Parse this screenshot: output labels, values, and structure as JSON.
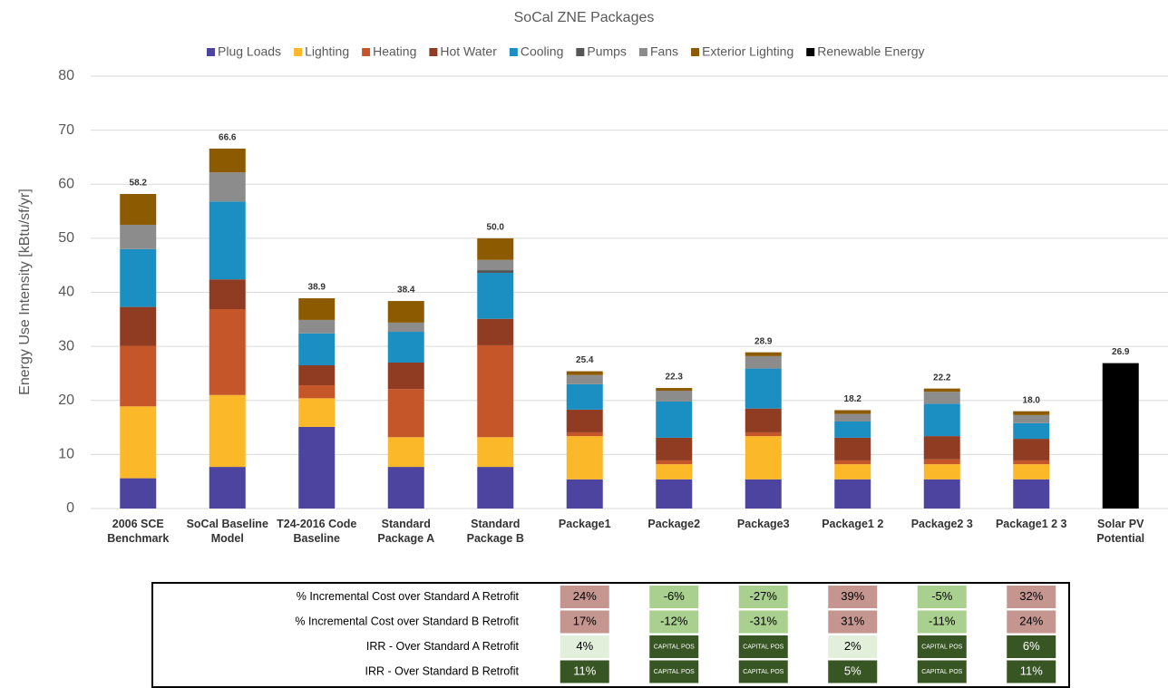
{
  "chart_data": {
    "type": "stacked_bar",
    "title": "SoCal ZNE Packages",
    "y_label": "Energy Use Intensity [kBtu/sf/yr]",
    "categories": [
      "2006 SCE\nBenchmark",
      "SoCal Baseline\nModel",
      "T24-2016 Code\nBaseline",
      "Standard\nPackage A",
      "Standard\nPackage B",
      "Package1",
      "Package2",
      "Package3",
      "Package1 2",
      "Package2 3",
      "Package1 2 3",
      "Solar PV\nPotential"
    ],
    "series": [
      {
        "name": "Plug Loads",
        "color": "#4d44a0",
        "values": [
          5.6,
          7.7,
          15.1,
          7.7,
          7.7,
          5.4,
          5.4,
          5.4,
          5.4,
          5.4,
          5.4,
          null
        ]
      },
      {
        "name": "Lighting",
        "color": "#fbb829",
        "values": [
          13.3,
          13.3,
          5.3,
          5.5,
          5.5,
          8.0,
          2.8,
          8.0,
          2.8,
          2.8,
          2.8,
          null
        ]
      },
      {
        "name": "Heating",
        "color": "#c5562a",
        "values": [
          11.2,
          15.9,
          2.4,
          8.9,
          17.0,
          0.7,
          0.7,
          0.7,
          0.7,
          0.9,
          0.7,
          null
        ]
      },
      {
        "name": "Hot Water",
        "color": "#8f3c22",
        "values": [
          7.2,
          5.5,
          3.7,
          4.9,
          4.9,
          4.2,
          4.2,
          4.4,
          4.2,
          4.3,
          4.0,
          null
        ]
      },
      {
        "name": "Cooling",
        "color": "#1b8fc2",
        "values": [
          10.7,
          14.4,
          5.9,
          5.7,
          8.5,
          4.7,
          6.7,
          7.4,
          3.0,
          6.0,
          2.9,
          null
        ]
      },
      {
        "name": "Pumps",
        "color": "#555555",
        "values": [
          null,
          null,
          null,
          null,
          0.5,
          null,
          null,
          null,
          null,
          null,
          null,
          null
        ]
      },
      {
        "name": "Fans",
        "color": "#8c8c8c",
        "values": [
          4.5,
          5.4,
          2.5,
          1.7,
          1.9,
          1.7,
          2.0,
          2.3,
          1.4,
          2.2,
          1.5,
          null
        ]
      },
      {
        "name": "Exterior Lighting",
        "color": "#8c5a00",
        "values": [
          5.7,
          4.4,
          4.0,
          4.0,
          4.0,
          0.7,
          0.5,
          0.7,
          0.7,
          0.6,
          0.7,
          null
        ]
      },
      {
        "name": "Renewable Energy",
        "color": "#000000",
        "values": [
          null,
          null,
          null,
          null,
          null,
          null,
          null,
          null,
          null,
          null,
          null,
          26.9
        ]
      }
    ],
    "totals": [
      58.2,
      66.6,
      38.9,
      38.4,
      50.0,
      25.4,
      22.3,
      28.9,
      18.2,
      22.2,
      18.0,
      26.9
    ],
    "total_labels": [
      "58.2",
      "66.6",
      "38.9",
      "38.4",
      "50.0",
      "25.4",
      "22.3",
      "28.9",
      "18.2",
      "22.2",
      "18.0",
      "26.9"
    ],
    "ylim": [
      0,
      80
    ],
    "yticks": [
      0,
      10,
      20,
      30,
      40,
      50,
      60,
      70,
      80
    ],
    "grid": true
  },
  "table": {
    "columns": [
      5,
      6,
      7,
      8,
      9,
      10
    ],
    "rows": [
      {
        "label": "% Incremental Cost over Standard A Retrofit",
        "cells": [
          {
            "text": "24%",
            "color": "#c4968f",
            "text_color": "#000"
          },
          {
            "text": "-6%",
            "color": "#a9d08e",
            "text_color": "#000"
          },
          {
            "text": "-27%",
            "color": "#a9d08e",
            "text_color": "#000"
          },
          {
            "text": "39%",
            "color": "#c4968f",
            "text_color": "#000"
          },
          {
            "text": "-5%",
            "color": "#a9d08e",
            "text_color": "#000"
          },
          {
            "text": "32%",
            "color": "#c4968f",
            "text_color": "#000"
          }
        ]
      },
      {
        "label": "% Incremental Cost over Standard B Retrofit",
        "cells": [
          {
            "text": "17%",
            "color": "#c4968f",
            "text_color": "#000"
          },
          {
            "text": "-12%",
            "color": "#a9d08e",
            "text_color": "#000"
          },
          {
            "text": "-31%",
            "color": "#a9d08e",
            "text_color": "#000"
          },
          {
            "text": "31%",
            "color": "#c4968f",
            "text_color": "#000"
          },
          {
            "text": "-11%",
            "color": "#a9d08e",
            "text_color": "#000"
          },
          {
            "text": "24%",
            "color": "#c4968f",
            "text_color": "#000"
          }
        ]
      },
      {
        "label": "IRR - Over Standard A Retrofit",
        "cells": [
          {
            "text": "4%",
            "color": "#e2efda",
            "text_color": "#000"
          },
          {
            "text": "CAPITAL POS",
            "color": "#375623",
            "text_color": "#fff"
          },
          {
            "text": "CAPITAL POS",
            "color": "#375623",
            "text_color": "#fff"
          },
          {
            "text": "2%",
            "color": "#e2efda",
            "text_color": "#000"
          },
          {
            "text": "CAPITAL POS",
            "color": "#375623",
            "text_color": "#fff"
          },
          {
            "text": "6%",
            "color": "#375623",
            "text_color": "#fff"
          }
        ]
      },
      {
        "label": "IRR - Over Standard B Retrofit",
        "cells": [
          {
            "text": "11%",
            "color": "#375623",
            "text_color": "#fff"
          },
          {
            "text": "CAPITAL POS",
            "color": "#375623",
            "text_color": "#fff"
          },
          {
            "text": "CAPITAL POS",
            "color": "#375623",
            "text_color": "#fff"
          },
          {
            "text": "5%",
            "color": "#375623",
            "text_color": "#fff"
          },
          {
            "text": "CAPITAL POS",
            "color": "#375623",
            "text_color": "#fff"
          },
          {
            "text": "11%",
            "color": "#375623",
            "text_color": "#fff"
          }
        ]
      }
    ]
  }
}
